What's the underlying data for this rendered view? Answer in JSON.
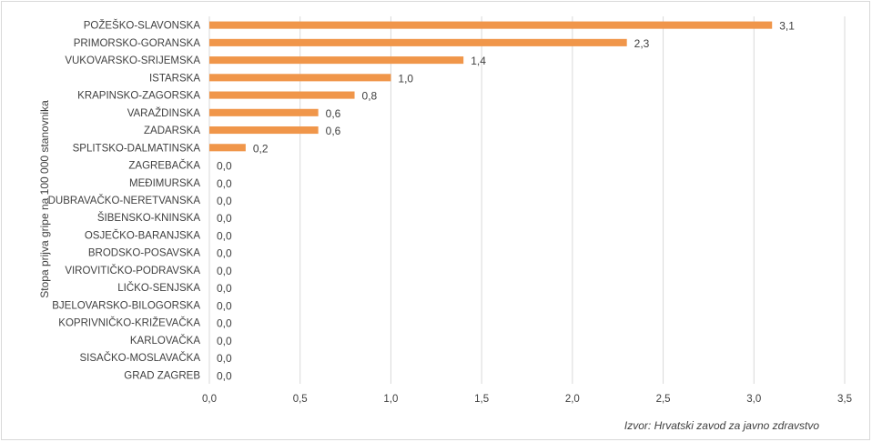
{
  "chart_data": {
    "type": "bar",
    "orientation": "horizontal",
    "categories": [
      "POŽEŠKO-SLAVONSKA",
      "PRIMORSKO-GORANSKA",
      "VUKOVARSKO-SRIJEMSKA",
      "ISTARSKA",
      "KRAPINSKO-ZAGORSKA",
      "VARAŽDINSKA",
      "ZADARSKA",
      "SPLITSKO-DALMATINSKA",
      "ZAGREBAČKA",
      "MEĐIMURSKA",
      "DUBRAVAČKO-NERETVANSKA",
      "ŠIBENSKO-KNINSKA",
      "OSJEČKO-BARANJSKA",
      "BRODSKO-POSAVSKA",
      "VIROVITIČKO-PODRAVSKA",
      "LIČKO-SENJSKA",
      "BJELOVARSKO-BILOGORSKA",
      "KOPRIVNIČKO-KRIŽEVAČKA",
      "KARLOVAČKA",
      "SISAČKO-MOSLAVAČKA",
      "GRAD ZAGREB"
    ],
    "values": [
      3.1,
      2.3,
      1.4,
      1.0,
      0.8,
      0.6,
      0.6,
      0.2,
      0,
      0,
      0,
      0,
      0,
      0,
      0,
      0,
      0,
      0,
      0,
      0,
      0
    ],
    "value_labels": [
      "3,1",
      "2,3",
      "1,4",
      "1,0",
      "0,8",
      "0,6",
      "0,6",
      "0,2",
      "0,0",
      "0,0",
      "0,0",
      "0,0",
      "0,0",
      "0,0",
      "0,0",
      "0,0",
      "0,0",
      "0,0",
      "0,0",
      "0,0",
      "0,0"
    ],
    "xlim": [
      0,
      3.5
    ],
    "xticks": [
      "0,0",
      "0,5",
      "1,0",
      "1,5",
      "2,0",
      "2,5",
      "3,0",
      "3,5"
    ],
    "xtick_values": [
      0,
      0.5,
      1.0,
      1.5,
      2.0,
      2.5,
      3.0,
      3.5
    ],
    "xlabel": "",
    "ylabel": "Stopa prijva gripe na 100 000 stanovnika",
    "title": "",
    "grid": "vertical",
    "legend": "none",
    "bar_color": "#f0964a",
    "grid_color": "#d9d9d9"
  },
  "source_note": "Izvor: Hrvatski zavod za javno zdravstvo"
}
